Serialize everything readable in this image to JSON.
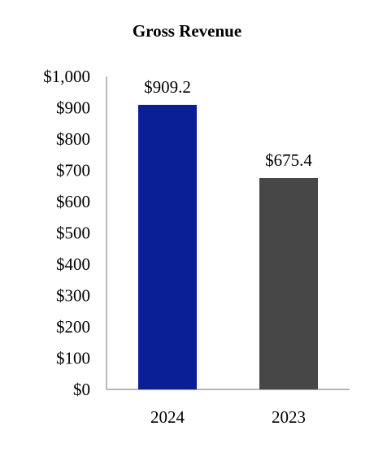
{
  "chart_data": {
    "type": "bar",
    "title": "Gross Revenue",
    "categories": [
      "2024",
      "2023"
    ],
    "values": [
      909.2,
      675.4
    ],
    "value_labels": [
      "$909.2",
      "$675.4"
    ],
    "bar_colors": [
      "#0a1f96",
      "#474747"
    ],
    "ylim": [
      0,
      1000
    ],
    "y_ticks": [
      0,
      100,
      200,
      300,
      400,
      500,
      600,
      700,
      800,
      900,
      1000
    ],
    "y_tick_labels": [
      "$0",
      "$100",
      "$200",
      "$300",
      "$400",
      "$500",
      "$600",
      "$700",
      "$800",
      "$900",
      "$1,000"
    ],
    "xlabel": "",
    "ylabel": "",
    "grid": false,
    "legend": "none",
    "axis_color": "#8c8c8c"
  }
}
